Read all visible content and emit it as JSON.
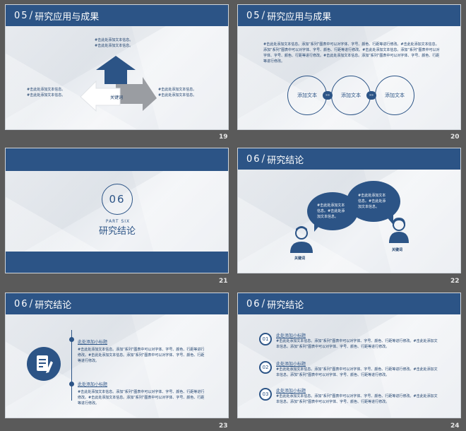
{
  "colors": {
    "primary": "#2c5486",
    "background": "#5a5a5a",
    "grey_arrow": "#9a9da2"
  },
  "slides": [
    {
      "number": "19",
      "header": {
        "num": "05",
        "slash": "/",
        "title": "研究应用与成果"
      },
      "texts": [
        "#击此处添加文本信息。",
        "#击此处添加文本信息。",
        "#击此处添加文本信息。",
        "#击此处添加文本信息。",
        "#击此处添加文本信息。",
        "#击此处添加文本信息。"
      ],
      "keyword": "关键词"
    },
    {
      "number": "20",
      "header": {
        "num": "05",
        "slash": "/",
        "title": "研究应用与成果"
      },
      "paragraph": "#击此处添加文本信息。添加“系列”图表中可以对字体、字号、颜色、行距等进行修改。#击此处添加文本信息。添加“系列”图表中可以对字体、字号、颜色、行距等进行修改。#击此处添加文本信息。添加“系列”图表中可以对字体、字号、颜色、行距等进行修改。#击此处添加文本信息。添加“系列”图表中可以对字体、字号、颜色、行距等进行修改。",
      "nodes": [
        "添加文本",
        "添加文本",
        "添加文本"
      ],
      "connector": "»»"
    },
    {
      "number": "21",
      "section_num": "06",
      "part_label": "PART SIX",
      "title": "研究结论"
    },
    {
      "number": "22",
      "header": {
        "num": "06",
        "slash": "/",
        "title": "研究结论"
      },
      "bubble_left": "#击此处添加文本信息。#击此处添加文本信息。",
      "bubble_right": "#击此处添加文本信息。#击此处添加文本信息。",
      "keyword_left": "关键词",
      "keyword_right": "关键词"
    },
    {
      "number": "23",
      "header": {
        "num": "06",
        "slash": "/",
        "title": "研究结论"
      },
      "subtitle_1": "此处添加小标题",
      "body_1": "#击此处添加文本信息。添加“系列”图表中可以对字体、字号、颜色、行距等进行修改。#击此处添加文本信息。添加“系列”图表中可以对字体、字号、颜色、行距等进行修改。",
      "subtitle_2": "此处添加小标题",
      "body_2": "#击此处添加文本信息。添加“系列”图表中可以对字体、字号、颜色、行距等进行修改。#击此处添加文本信息。添加“系列”图表中可以对字体、字号、颜色、行距等进行修改。",
      "icon": "document-edit-icon"
    },
    {
      "number": "24",
      "header": {
        "num": "06",
        "slash": "/",
        "title": "研究结论"
      },
      "items": [
        {
          "index": "01",
          "subtitle": "此处添加小标题",
          "body": "#击此处添加文本信息。添加“系列”图表中可以对字体、字号、颜色、行距等进行修改。#击此处添加文本信息。添加“系列”图表中可以对字体、字号、颜色、行距等进行修改。"
        },
        {
          "index": "02",
          "subtitle": "此处添加小标题",
          "body": "#击此处添加文本信息。添加“系列”图表中可以对字体、字号、颜色、行距等进行修改。#击此处添加文本信息。添加“系列”图表中可以对字体、字号、颜色、行距等进行修改。"
        },
        {
          "index": "03",
          "subtitle": "此处添加小标题",
          "body": "#击此处添加文本信息。添加“系列”图表中可以对字体、字号、颜色、行距等进行修改。#击此处添加文本信息。添加“系列”图表中可以对字体、字号、颜色、行距等进行修改。"
        }
      ]
    }
  ]
}
